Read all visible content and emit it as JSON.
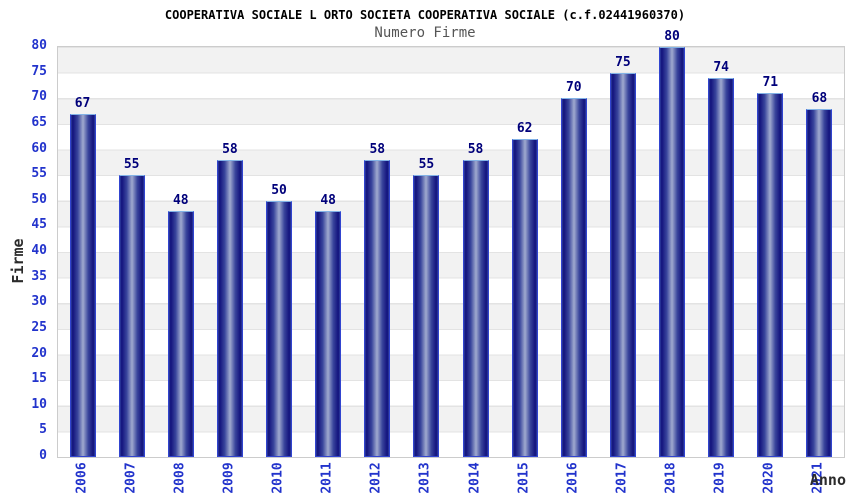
{
  "chart_data": {
    "type": "bar",
    "title": "COOPERATIVA SOCIALE L ORTO SOCIETA COOPERATIVA SOCIALE (c.f.02441960370)",
    "subtitle": "Numero Firme",
    "xlabel": "Anno",
    "ylabel": "Firme",
    "categories": [
      "2006",
      "2007",
      "2008",
      "2009",
      "2010",
      "2011",
      "2012",
      "2013",
      "2014",
      "2015",
      "2016",
      "2017",
      "2018",
      "2019",
      "2020",
      "2021"
    ],
    "values": [
      67,
      55,
      48,
      58,
      50,
      48,
      58,
      55,
      58,
      62,
      70,
      75,
      80,
      74,
      71,
      68
    ],
    "ylim": [
      0,
      80
    ],
    "ytick_step": 5,
    "grid": "horizontal alternating bands every 5 units",
    "legend": "none",
    "colors": {
      "bar_border": "#3144cf",
      "bar_border_top": "#82b2e6",
      "bar_edge_dark": "#12127c",
      "bar_center_light": "#a0aacf",
      "tick_label": "#2233cc",
      "value_label": "#00007a",
      "title": "#000000",
      "subtitle": "#555555",
      "axis_label": "#2b2b2b",
      "band_gray": "#f2f2f2",
      "band_white": "#ffffff",
      "plot_border": "#cccccc"
    }
  }
}
